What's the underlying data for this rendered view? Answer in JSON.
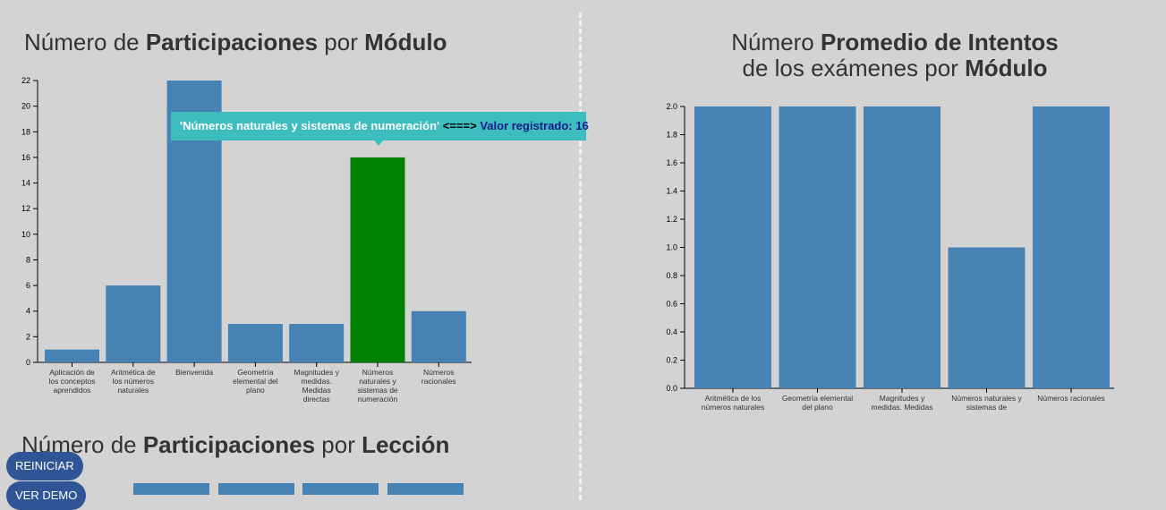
{
  "titles": {
    "left": {
      "a": "Número de ",
      "b": "Participaciones",
      "c": " por ",
      "d": "Módulo"
    },
    "right": {
      "a": "Número ",
      "b": "Promedio de Intentos",
      "c": "de los exámenes por ",
      "d": "Módulo"
    },
    "bottom": {
      "a": "Número de ",
      "b": "Participaciones",
      "c": " por ",
      "d": "Lección"
    }
  },
  "tooltip": {
    "name": "'Números naturales y sistemas de numeración'",
    "sep": " <===> ",
    "value": "Valor registrado: 16"
  },
  "buttons": {
    "reset": "REINICIAR",
    "demo": "VER DEMO"
  },
  "colors": {
    "bar": "#4682b4",
    "highlight": "#008000",
    "tooltip": "#3dbdbd"
  },
  "chart_data": [
    {
      "type": "bar",
      "categories": [
        "Aplicación de los conceptos aprendidos",
        "Aritmética de los números naturales",
        "Bienvenida",
        "Geometría elemental del plano",
        "Magnitudes y medidas. Medidas directas",
        "Números naturales y sistemas de numeración",
        "Números racionales"
      ],
      "values": [
        1,
        6,
        22,
        3,
        3,
        16,
        4
      ],
      "highlighted": "Números naturales y sistemas de numeración",
      "ylim": [
        0,
        22
      ],
      "yticks": [
        "0",
        "2",
        "4",
        "6",
        "8",
        "10",
        "12",
        "14",
        "16",
        "18",
        "20",
        "22"
      ]
    },
    {
      "type": "bar",
      "categories": [
        "Aritmética de los números naturales",
        "Geometría elemental del plano",
        "Magnitudes y medidas. Medidas",
        "Números naturales y sistemas de",
        "Números racionales"
      ],
      "values": [
        2,
        2,
        2,
        1,
        2
      ],
      "ylim": [
        0,
        2
      ],
      "yticks": [
        "0.0",
        "0.2",
        "0.4",
        "0.6",
        "0.8",
        "1.0",
        "1.2",
        "1.4",
        "1.6",
        "1.8",
        "2.0"
      ]
    }
  ]
}
